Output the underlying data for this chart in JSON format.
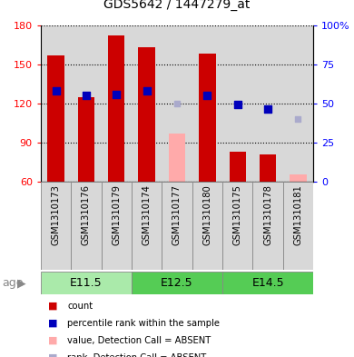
{
  "title": "GDS5642 / 1447279_at",
  "samples": [
    "GSM1310173",
    "GSM1310176",
    "GSM1310179",
    "GSM1310174",
    "GSM1310177",
    "GSM1310180",
    "GSM1310175",
    "GSM1310178",
    "GSM1310181"
  ],
  "age_groups": [
    {
      "label": "E11.5",
      "start": 0,
      "end": 3,
      "color": "#aaeaaa"
    },
    {
      "label": "E12.5",
      "start": 3,
      "end": 6,
      "color": "#66dd66"
    },
    {
      "label": "E14.5",
      "start": 6,
      "end": 9,
      "color": "#66dd66"
    }
  ],
  "bar_values": [
    157,
    125,
    172,
    163,
    null,
    158,
    83,
    81,
    null
  ],
  "absent_bar_values": [
    null,
    null,
    null,
    null,
    97,
    null,
    null,
    null,
    66
  ],
  "rank_dots": [
    130,
    126,
    127,
    130,
    null,
    126,
    119,
    116,
    null
  ],
  "absent_rank_dots": [
    null,
    null,
    null,
    null,
    120,
    null,
    null,
    null,
    108
  ],
  "ylim_left": [
    60,
    180
  ],
  "left_ticks": [
    60,
    90,
    120,
    150,
    180
  ],
  "right_tick_vals": [
    60,
    90,
    120,
    150,
    180
  ],
  "right_tick_labels": [
    "0",
    "25",
    "50",
    "75",
    "100%"
  ],
  "bar_width": 0.55,
  "legend_colors": [
    "#cc0000",
    "#0000bb",
    "#ffaaaa",
    "#aaaacc"
  ],
  "legend_labels": [
    "count",
    "percentile rank within the sample",
    "value, Detection Call = ABSENT",
    "rank, Detection Call = ABSENT"
  ]
}
